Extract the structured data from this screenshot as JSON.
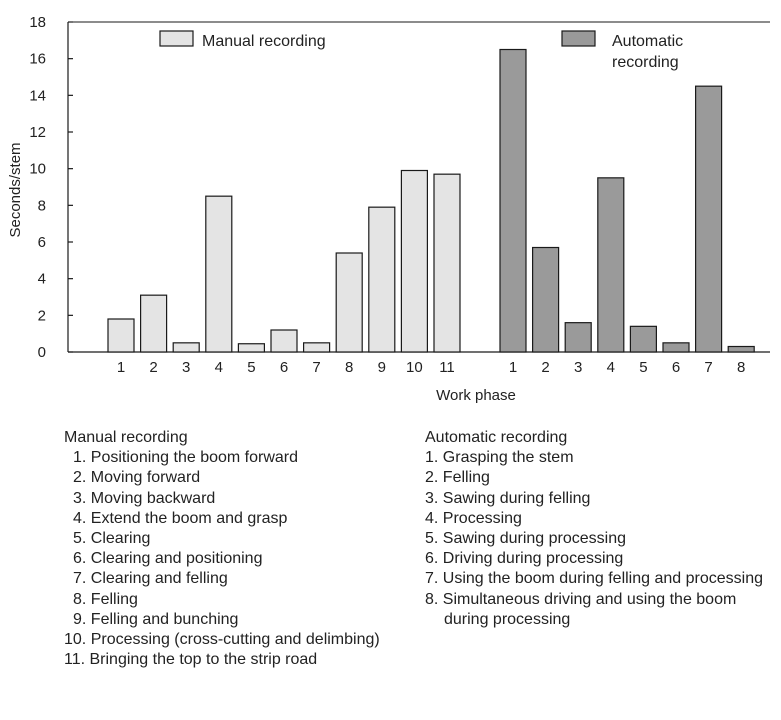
{
  "chart_data": {
    "type": "bar",
    "title": "",
    "xlabel": "Work phase",
    "ylabel": "Seconds/stem",
    "ylim": [
      0,
      18
    ],
    "yticks": [
      0,
      2,
      4,
      6,
      8,
      10,
      12,
      14,
      16,
      18
    ],
    "grid": false,
    "legend_placement": "top",
    "series": [
      {
        "name": "Manual recording",
        "color": "#e4e4e4",
        "categories": [
          "1",
          "2",
          "3",
          "4",
          "5",
          "6",
          "7",
          "8",
          "9",
          "10",
          "11"
        ],
        "values": [
          1.8,
          3.1,
          0.5,
          8.5,
          0.45,
          1.2,
          0.5,
          5.4,
          7.9,
          9.9,
          9.7
        ]
      },
      {
        "name": "Automatic recording",
        "legend_lines": [
          "Automatic",
          "recording"
        ],
        "color": "#9a9a9a",
        "categories": [
          "1",
          "2",
          "3",
          "4",
          "5",
          "6",
          "7",
          "8"
        ],
        "values": [
          16.5,
          5.7,
          1.6,
          9.5,
          1.4,
          0.5,
          14.5,
          0.3
        ]
      }
    ]
  },
  "notes": {
    "manual": {
      "heading": "Manual recording",
      "items": [
        "1. Positioning the boom forward",
        "2. Moving forward",
        "3. Moving backward",
        "4. Extend the boom and grasp",
        "5. Clearing",
        "6. Clearing and positioning",
        "7. Clearing and felling",
        "8. Felling",
        "9. Felling and bunching",
        "10. Processing (cross-cutting and delimbing)",
        "11. Bringing the top to the strip road"
      ]
    },
    "automatic": {
      "heading": "Automatic recording",
      "items": [
        "1. Grasping the stem",
        "2. Felling",
        "3. Sawing during felling",
        "4. Processing",
        "5. Sawing during processing",
        "6. Driving during processing",
        "7. Using the boom during felling and processing",
        "8. Simultaneous driving and using the boom",
        "during processing"
      ]
    }
  }
}
